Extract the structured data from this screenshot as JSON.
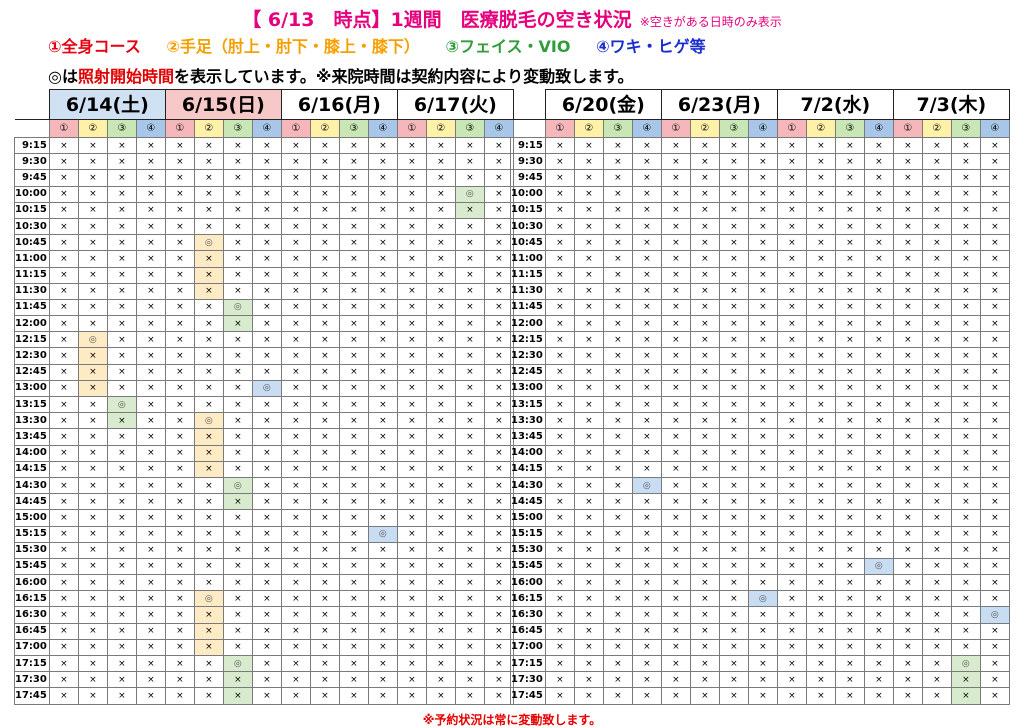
{
  "header": {
    "title": "【 6/13　時点】1週間　医療脱毛の空き状況",
    "title_note": "※空きがある日時のみ表示"
  },
  "legend": [
    {
      "label": "①全身コース",
      "color": "#e60012"
    },
    {
      "label": "②手足（肘上・肘下・膝上・膝下）",
      "color": "#f5a000"
    },
    {
      "label": "③フェイス・VIO",
      "color": "#2f9e3a"
    },
    {
      "label": "④ワキ・ヒゲ等",
      "color": "#1a2ecf"
    }
  ],
  "info": {
    "symbol_label": "◎は",
    "highlight": "照射開始時間",
    "rest": "を表示しています。※来院時間は契約内容により変動致します。"
  },
  "footer_note": "※予約状況は常に変動致します。",
  "course_marks": [
    "①",
    "②",
    "③",
    "④"
  ],
  "marks": {
    "unavailable": "×",
    "available": "◎"
  },
  "times": [
    "9:15",
    "9:30",
    "9:45",
    "10:00",
    "10:15",
    "10:30",
    "10:45",
    "11:00",
    "11:15",
    "11:30",
    "11:45",
    "12:00",
    "12:15",
    "12:30",
    "12:45",
    "13:00",
    "13:15",
    "13:30",
    "13:45",
    "14:00",
    "14:15",
    "14:30",
    "14:45",
    "15:00",
    "15:15",
    "15:30",
    "15:45",
    "16:00",
    "16:15",
    "16:30",
    "16:45",
    "17:00",
    "17:15",
    "17:30",
    "17:45"
  ],
  "dates_left": [
    {
      "label": "6/14(土)",
      "bg": "#cfe1f2",
      "slots": [
        {
          "time": "12:15",
          "course": 2,
          "span": 4
        },
        {
          "time": "13:15",
          "course": 3,
          "span": 2
        }
      ]
    },
    {
      "label": "6/15(日)",
      "bg": "#f7c8c8",
      "slots": [
        {
          "time": "10:45",
          "course": 2,
          "span": 4
        },
        {
          "time": "11:45",
          "course": 3,
          "span": 2
        },
        {
          "time": "13:00",
          "course": 4,
          "span": 1
        },
        {
          "time": "13:30",
          "course": 2,
          "span": 4
        },
        {
          "time": "14:30",
          "course": 3,
          "span": 2
        },
        {
          "time": "16:15",
          "course": 2,
          "span": 4
        },
        {
          "time": "17:15",
          "course": 3,
          "span": 3
        }
      ]
    },
    {
      "label": "6/16(月)",
      "bg": "",
      "slots": [
        {
          "time": "15:15",
          "course": 4,
          "span": 1
        }
      ]
    },
    {
      "label": "6/17(火)",
      "bg": "",
      "slots": [
        {
          "time": "10:00",
          "course": 3,
          "span": 2
        }
      ]
    }
  ],
  "dates_right": [
    {
      "label": "6/20(金)",
      "bg": "",
      "slots": [
        {
          "time": "14:30",
          "course": 4,
          "span": 1
        }
      ]
    },
    {
      "label": "6/23(月)",
      "bg": "",
      "slots": [
        {
          "time": "16:15",
          "course": 4,
          "span": 1
        }
      ]
    },
    {
      "label": "7/2(水)",
      "bg": "",
      "slots": [
        {
          "time": "15:45",
          "course": 4,
          "span": 1
        }
      ]
    },
    {
      "label": "7/3(木)",
      "bg": "",
      "slots": [
        {
          "time": "17:15",
          "course": 3,
          "span": 3
        },
        {
          "time": "16:30",
          "course": 4,
          "span": 1
        }
      ]
    }
  ]
}
